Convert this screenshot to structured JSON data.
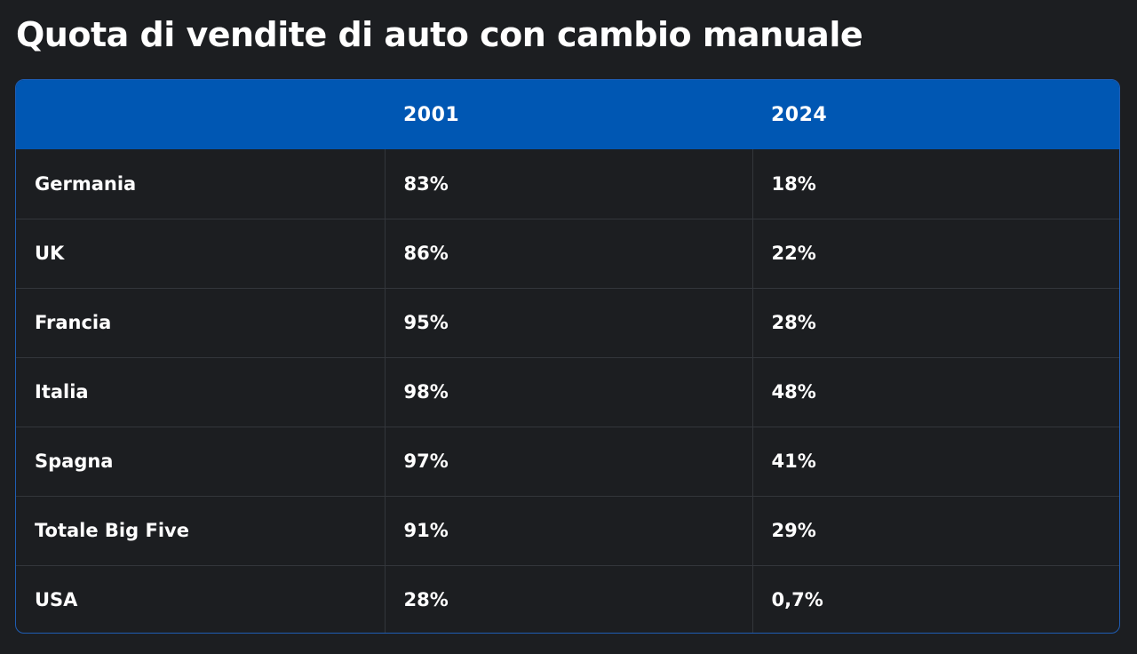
{
  "chart_data": {
    "type": "table",
    "title": "Quota di vendite di auto con cambio manuale",
    "columns": [
      "",
      "2001",
      "2024"
    ],
    "rows": [
      [
        "Germania",
        "83%",
        "18%"
      ],
      [
        "UK",
        "86%",
        "22%"
      ],
      [
        "Francia",
        "95%",
        "28%"
      ],
      [
        "Italia",
        "98%",
        "48%"
      ],
      [
        "Spagna",
        "97%",
        "41%"
      ],
      [
        "Totale Big Five",
        "91%",
        "29%"
      ],
      [
        "USA",
        "28%",
        "0,7%"
      ]
    ]
  },
  "colors": {
    "background": "#1c1e21",
    "header_background": "#0057b3",
    "text": "#ffffff",
    "grid": "#33363b"
  }
}
